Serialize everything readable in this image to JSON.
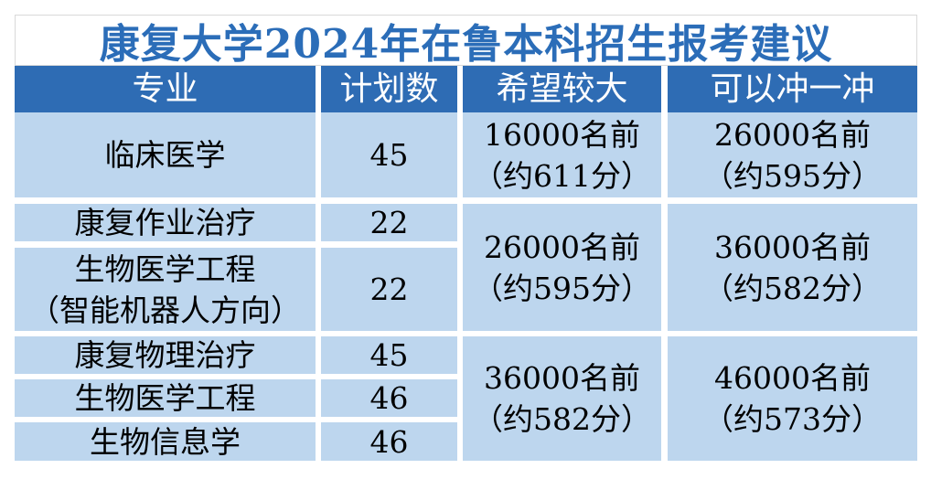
{
  "title": "康复大学2024年在鲁本科招生报考建议",
  "table": {
    "headers": [
      "专业",
      "计划数",
      "希望较大",
      "可以冲一冲"
    ],
    "groups": [
      {
        "rows": [
          {
            "major_lines": [
              "临床医学"
            ],
            "plan": "45"
          }
        ],
        "hope_lines": [
          "16000名前",
          "（约611分）"
        ],
        "stretch_lines": [
          "26000名前",
          "（约595分）"
        ]
      },
      {
        "rows": [
          {
            "major_lines": [
              "康复作业治疗"
            ],
            "plan": "22"
          },
          {
            "major_lines": [
              "生物医学工程",
              "（智能机器人方向）"
            ],
            "plan": "22"
          }
        ],
        "hope_lines": [
          "26000名前",
          "（约595分）"
        ],
        "stretch_lines": [
          "36000名前",
          "（约582分）"
        ]
      },
      {
        "rows": [
          {
            "major_lines": [
              "康复物理治疗"
            ],
            "plan": "45"
          },
          {
            "major_lines": [
              "生物医学工程"
            ],
            "plan": "46"
          },
          {
            "major_lines": [
              "生物信息学"
            ],
            "plan": "46"
          }
        ],
        "hope_lines": [
          "36000名前",
          "（约582分）"
        ],
        "stretch_lines": [
          "46000名前",
          "（约573分）"
        ]
      }
    ]
  },
  "colors": {
    "title_text": "#2B6DB8",
    "header_bg": "#2E6CB4",
    "header_text": "#FFFFFF",
    "cell_bg": "#BDD6EE",
    "cell_text": "#000000",
    "gap": "#FFFFFF",
    "title_border": "#D9D9D9"
  }
}
